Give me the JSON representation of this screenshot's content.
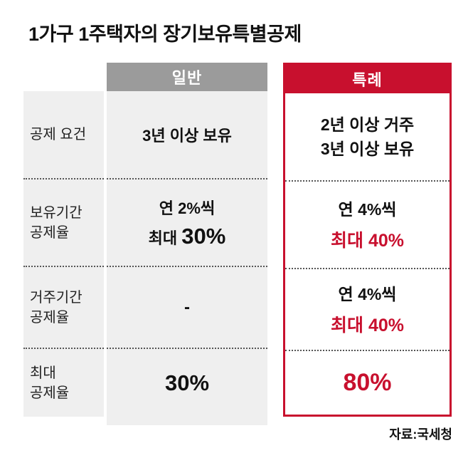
{
  "title": "1가구 1주택자의 장기보유특별공제",
  "source": "자료:국세청",
  "columns": {
    "general": "일반",
    "special": "특례"
  },
  "colors": {
    "accent_red": "#c8102e",
    "header_gray": "#9b9b9b",
    "band_gray": "#efefef"
  },
  "rows": [
    {
      "label": "공제 요건",
      "general": "3년 이상 보유",
      "special_black": "2년 이상 거주\n3년 이상 보유"
    },
    {
      "label": "보유기간\n공제율",
      "general_line1": "연 2%씩",
      "general_max_label": "최대 ",
      "general_max_value": "30%",
      "special_black": "연 4%씩",
      "special_red": "최대 40%"
    },
    {
      "label": "거주기간\n공제율",
      "general": "-",
      "special_black": "연 4%씩",
      "special_red": "최대 40%"
    },
    {
      "label": "최대\n공제율",
      "general_big": "30%",
      "special_big": "80%"
    }
  ],
  "chart_data": {
    "type": "table",
    "title": "1가구 1주택자의 장기보유특별공제",
    "columns": [
      "",
      "일반",
      "특례"
    ],
    "rows": [
      [
        "공제 요건",
        "3년 이상 보유",
        "2년 이상 거주 3년 이상 보유"
      ],
      [
        "보유기간 공제율",
        "연 2%씩 최대 30%",
        "연 4%씩 최대 40%"
      ],
      [
        "거주기간 공제율",
        "-",
        "연 4%씩 최대 40%"
      ],
      [
        "최대 공제율",
        "30%",
        "80%"
      ]
    ],
    "source": "자료:국세청",
    "layout": {
      "highlight_column": "특례",
      "highlight_color": "#c8102e",
      "general_header_color": "#9b9b9b"
    }
  }
}
